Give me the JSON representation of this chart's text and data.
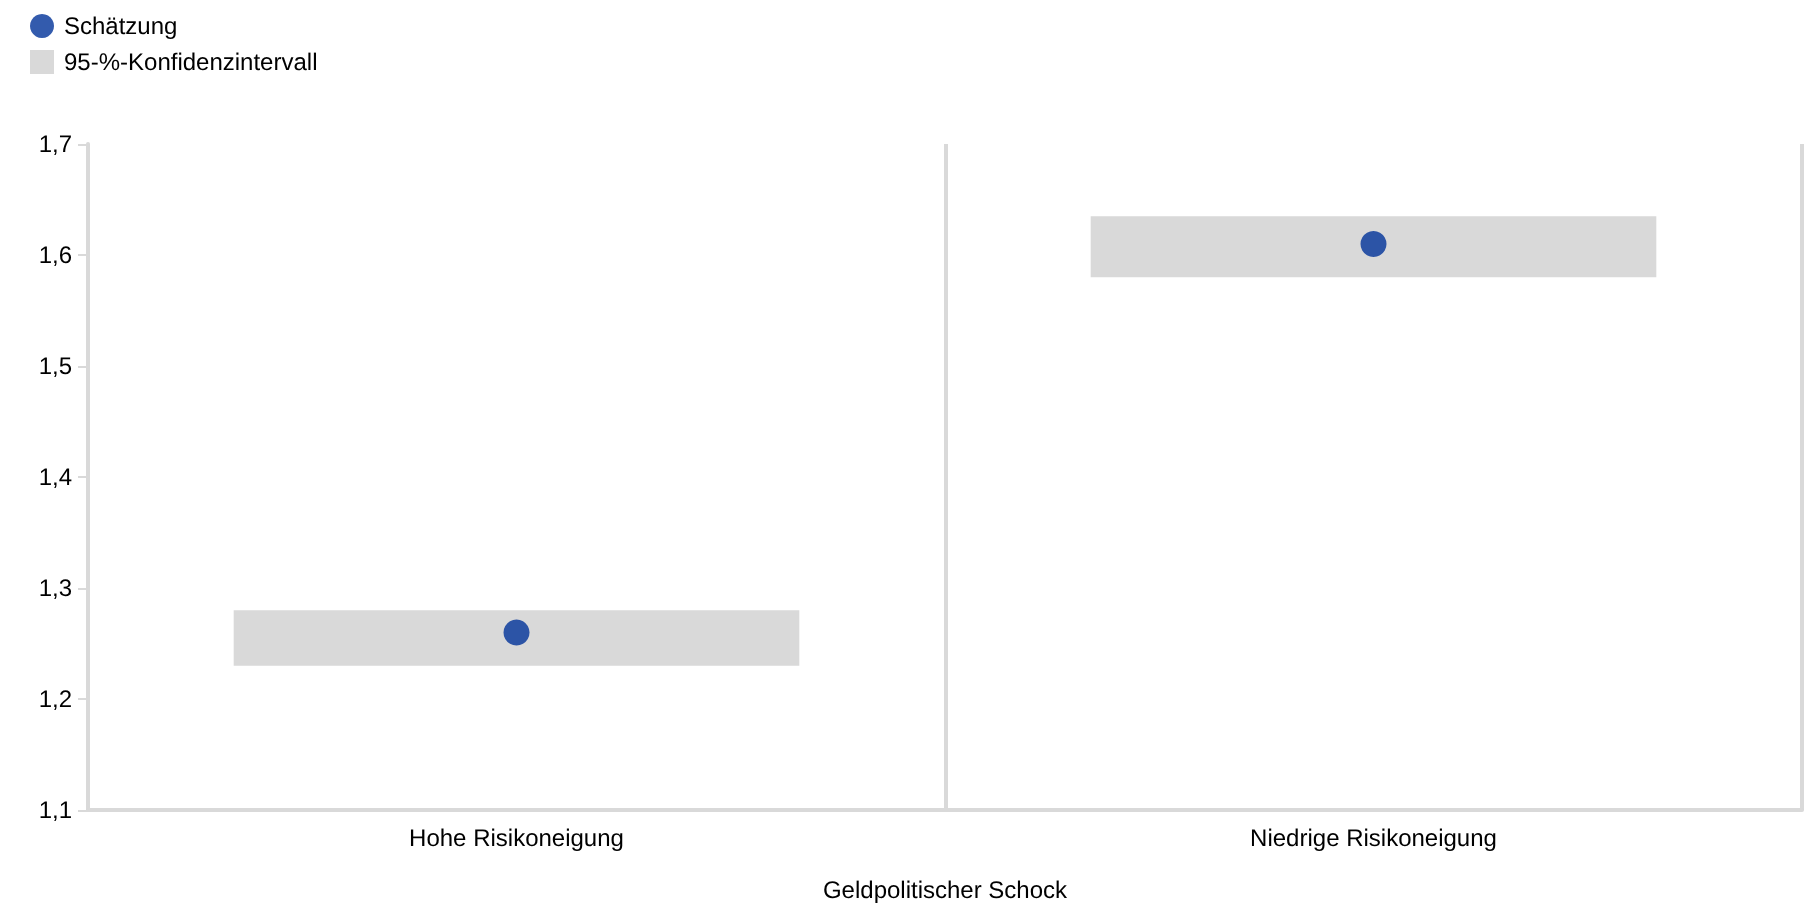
{
  "chart_data": {
    "type": "bar",
    "xlabel": "Geldpolitischer Schock",
    "categories": [
      "Hohe Risikoneigung",
      "Niedrige Risikoneigung"
    ],
    "series": [
      {
        "name": "Schätzung",
        "type": "scatter",
        "color": "#003299",
        "x": [
          "Hohe Risikoneigung",
          "Niedrige Risikoneigung"
        ],
        "values": [
          1.26,
          1.61
        ]
      },
      {
        "name": "95-%-Konfidenzintervall",
        "color": "#d9d9d9",
        "base": [
          1.23,
          1.58
        ],
        "values": [
          0.05,
          0.055
        ]
      }
    ],
    "ylim": [
      1.1,
      1.7
    ],
    "yticks": [
      {
        "value": 1.1,
        "label": "1,1"
      },
      {
        "value": 1.2,
        "label": "1,2"
      },
      {
        "value": 1.3,
        "label": "1,3"
      },
      {
        "value": 1.4,
        "label": "1,4"
      },
      {
        "value": 1.5,
        "label": "1,5"
      },
      {
        "value": 1.6,
        "label": "1,6"
      },
      {
        "value": 1.7,
        "label": "1,7"
      }
    ],
    "grid": "x",
    "legend": "top left",
    "marker": "circle"
  }
}
